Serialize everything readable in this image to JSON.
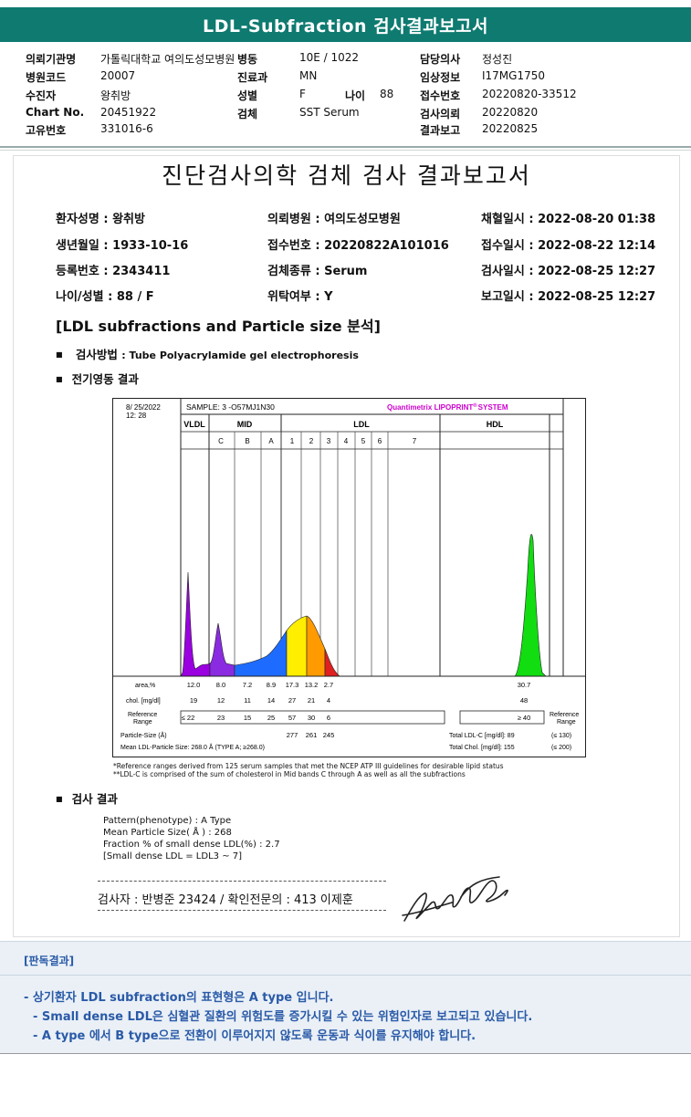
{
  "header": {
    "title": "LDL-Subfraction 검사결과보고서"
  },
  "info": {
    "rows": [
      [
        {
          "label": "의뢰기관명",
          "value": "가톨릭대학교 여의도성모병원"
        },
        {
          "label": "병동",
          "value": "10E / 1022"
        },
        {
          "label": "담당의사",
          "value": "정성진"
        }
      ],
      [
        {
          "label": "병원코드",
          "value": "20007"
        },
        {
          "label": "진료과",
          "value": "MN"
        },
        {
          "label": "임상정보",
          "value": "I17MG1750"
        }
      ],
      [
        {
          "label": "수진자",
          "value": "왕취방"
        },
        {
          "label": "성별",
          "value": "F"
        },
        {
          "label": "접수번호",
          "value": "20220820-33512"
        }
      ],
      [
        {
          "label": "Chart No.",
          "value": "20451922"
        },
        {
          "label": "검체",
          "value": "SST Serum"
        },
        {
          "label": "검사의뢰",
          "value": "20220820"
        }
      ],
      [
        {
          "label": "고유번호",
          "value": "331016-6"
        },
        {
          "label": "",
          "value": ""
        },
        {
          "label": "결과보고",
          "value": "20220825"
        }
      ]
    ],
    "age_label": "나이",
    "age_value": "88"
  },
  "report": {
    "title": "진단검사의학 검체 검사 결과보고서",
    "patient": [
      [
        "환자성명 : 왕취방",
        "의뢰병원 : 여의도성모병원",
        "채혈일시 : 2022-08-20 01:38"
      ],
      [
        "생년월일 : 1933-10-16",
        "접수번호 : 20220822A101016",
        "접수일시 : 2022-08-22 12:14"
      ],
      [
        "등록번호 : 2343411",
        "검체종류 : Serum",
        "검사일시 : 2022-08-25 12:27"
      ],
      [
        "나이/성별 : 88 / F",
        "위탁여부 : Y",
        "보고일시 : 2022-08-25 12:27"
      ]
    ],
    "section_title": "[LDL subfractions and Particle size 분석]",
    "method_label": "검사방법",
    "method_value": ": Tube Polyacrylamide gel electrophoresis",
    "electro_label": "전기영동 결과",
    "result_label": "검사 결과",
    "results": [
      "Pattern(phenotype) : A Type",
      "Mean Particle Size( Å ) : 268",
      "Fraction % of small dense LDL(%) : 2.7",
      "[Small dense LDL = LDL3 ~ 7]"
    ],
    "signature_line": "검사자 : 반병준  23424  /  확인전문의 : 413  이제훈",
    "footnotes": [
      "*Reference ranges derived from 125 serum samples that met the NCEP ATP III guidelines for desirable lipid status",
      "**LDL-C is comprised of the sum of cholesterol in Mid bands C through A as well as all the subfractions"
    ]
  },
  "chart_data": {
    "type": "area",
    "date": "8/ 25/2022",
    "time": "12: 28",
    "sample": "SAMPLE:  3 -O57MJ1N30",
    "brand": "Quantimetrix LIPOPRINT",
    "brand_reg": "®",
    "brand_system": "SYSTEM",
    "groups": [
      "VLDL",
      "MID",
      "LDL",
      "HDL"
    ],
    "bands": [
      "C",
      "B",
      "A",
      "1",
      "2",
      "3",
      "4",
      "5",
      "6",
      "7"
    ],
    "row_labels": {
      "area": "area,%",
      "chol": "chol. [mg/dl]",
      "ref": "Reference Range",
      "ref_right": "Reference Range",
      "particle": "Particle-Size (Å)",
      "mean": "Mean LDL-Particle Size:   268.0 Å  (TYPE A; ≥268.0)"
    },
    "area_values": [
      "12.0",
      "8.0",
      "7.2",
      "8.9",
      "17.3",
      "13.2",
      "2.7",
      "30.7"
    ],
    "chol_values": [
      "19",
      "12",
      "11",
      "14",
      "27",
      "21",
      "4",
      "48"
    ],
    "ref_values": [
      "≤  22",
      "23",
      "15",
      "25",
      "57",
      "30",
      "6",
      "≥ 40"
    ],
    "particle_values": [
      "277",
      "261",
      "245"
    ],
    "total_ldl": "Total LDL-C [mg/dl]:  89",
    "total_ldl_ref": "(≤ 130)",
    "total_chol": "Total Chol. [mg/dl]:   155",
    "total_chol_ref": "(≤ 200)",
    "colors": {
      "vldl": "#9a00e0",
      "mid": "#8a2be2",
      "blue": "#1e6cff",
      "yellow": "#ffee00",
      "orange": "#ff9a00",
      "red": "#e02020",
      "hdl": "#11dd11",
      "brand": "#cc00cc"
    }
  },
  "bottom": {
    "judge_label": "[판독결과]",
    "lines": [
      "- 상기환자 LDL subfraction의 표현형은 A type 입니다.",
      "-  Small dense LDL은 심혈관 질환의 위험도를 증가시킬 수 있는 위험인자로 보고되고 있습니다.",
      "-  A type 에서 B type으로 전환이 이루어지지 않도록 운동과 식이를 유지해야 합니다."
    ]
  }
}
